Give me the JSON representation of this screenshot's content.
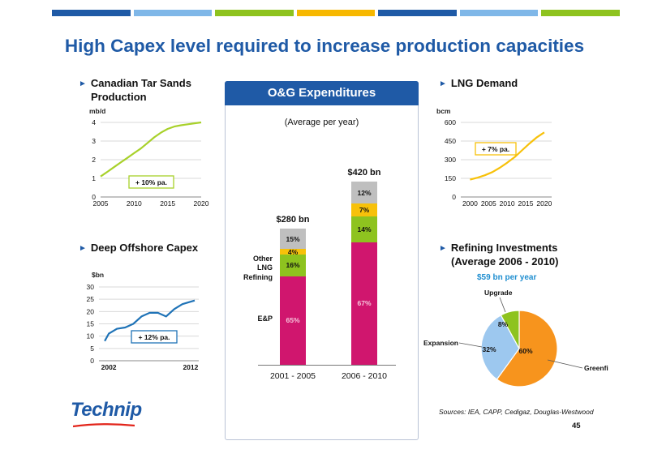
{
  "colorbar": [
    "#1f5aa6",
    "#7fb7e8",
    "#8ec31f",
    "#f7b800",
    "#1f5aa6",
    "#7fb7e8",
    "#8ec31f"
  ],
  "title": "High Capex level required to increase production capacities",
  "tar_sands": {
    "title_line1": "Canadian Tar Sands",
    "title_line2": "Production",
    "unit": "mb/d",
    "annotation": "+ 10% pa.",
    "line_color": "#a8d12a"
  },
  "lng": {
    "title": "LNG Demand",
    "unit": "bcm",
    "annotation": "+ 7% pa.",
    "line_color": "#f7c10a"
  },
  "offshore": {
    "title": "Deep Offshore Capex",
    "unit": "$bn",
    "annotation": "+ 12% pa.",
    "line_color": "#1f73b7"
  },
  "refining": {
    "title_line1": "Refining Investments",
    "title_line2": "(Average 2006 - 2010)",
    "total": "$59 bn per year"
  },
  "og": {
    "header": "O&G Expenditures",
    "subtitle": "(Average per year)",
    "total_2001": "$280 bn",
    "total_2006": "$420 bn",
    "cat_other": "Other",
    "cat_lng": "LNG",
    "cat_refining": "Refining",
    "cat_ep": "E&P"
  },
  "chart_data": [
    {
      "type": "line",
      "title": "Canadian Tar Sands Production",
      "ylabel": "mb/d",
      "x": [
        2005,
        2006,
        2007,
        2008,
        2009,
        2010,
        2011,
        2012,
        2013,
        2014,
        2015,
        2016,
        2017,
        2018,
        2019,
        2020
      ],
      "series": [
        {
          "values": [
            1.1,
            1.35,
            1.6,
            1.85,
            2.1,
            2.35,
            2.6,
            2.9,
            3.2,
            3.45,
            3.65,
            3.78,
            3.85,
            3.9,
            3.95,
            4.0
          ]
        }
      ],
      "xticks": [
        "2005",
        "2010",
        "2015",
        "2020"
      ],
      "yticks": [
        "0",
        "1",
        "2",
        "3",
        "4"
      ],
      "ylim": [
        0,
        4
      ],
      "annotation": "+ 10% pa."
    },
    {
      "type": "line",
      "title": "LNG Demand",
      "ylabel": "bcm",
      "x": [
        2000,
        2002,
        2004,
        2006,
        2008,
        2010,
        2012,
        2014,
        2016,
        2018,
        2020
      ],
      "series": [
        {
          "values": [
            140,
            155,
            175,
            200,
            235,
            275,
            320,
            375,
            430,
            480,
            520
          ]
        }
      ],
      "xticks": [
        "2000",
        "2005",
        "2010",
        "2015",
        "2020"
      ],
      "yticks": [
        "0",
        "150",
        "300",
        "450",
        "600"
      ],
      "ylim": [
        0,
        600
      ],
      "annotation": "+ 7% pa."
    },
    {
      "type": "line",
      "title": "Deep Offshore Capex",
      "ylabel": "$bn",
      "x": [
        2001.5,
        2002,
        2003,
        2004,
        2005,
        2006,
        2007,
        2008,
        2009,
        2010,
        2011,
        2012,
        2012.5
      ],
      "series": [
        {
          "values": [
            8,
            11,
            13,
            13.5,
            15,
            18,
            19.5,
            19.5,
            18,
            21,
            23,
            24,
            24.5
          ]
        }
      ],
      "xticks": [
        "2002",
        "2012"
      ],
      "yticks": [
        "0",
        "5",
        "10",
        "15",
        "20",
        "25",
        "30"
      ],
      "ylim": [
        0,
        30
      ],
      "annotation": "+ 12% pa."
    },
    {
      "type": "bar",
      "title": "O&G Expenditures",
      "subtitle": "(Average per year)",
      "categories": [
        "2001 - 2005",
        "2006 - 2010"
      ],
      "totals": [
        "$280 bn",
        "$420 bn"
      ],
      "series": [
        {
          "name": "E&P",
          "values": [
            65,
            67
          ],
          "color": "#d0166e",
          "labels": [
            "65%",
            "67%"
          ]
        },
        {
          "name": "Refining",
          "values": [
            16,
            14
          ],
          "color": "#8ec31f",
          "labels": [
            "16%",
            "14%"
          ]
        },
        {
          "name": "LNG",
          "values": [
            4,
            7
          ],
          "color": "#f7c10a",
          "labels": [
            "4%",
            "7%"
          ]
        },
        {
          "name": "Other",
          "values": [
            15,
            12
          ],
          "color": "#bfbfbf",
          "labels": [
            "15%",
            "12%"
          ]
        }
      ]
    },
    {
      "type": "pie",
      "title": "Refining Investments (Average 2006 - 2010)",
      "subtitle": "$59 bn per year",
      "labels": [
        "Greenfield",
        "Expansion",
        "Upgrade"
      ],
      "values": [
        60,
        32,
        8
      ],
      "value_labels": [
        "60%",
        "32%",
        "8%"
      ],
      "colors": [
        "#f7941d",
        "#9dc8ef",
        "#8ec31f"
      ]
    }
  ],
  "sources": "Sources:  IEA, CAPP, Cedigaz, Douglas-Westwood",
  "page_number": "45",
  "logo_text": "Technip"
}
